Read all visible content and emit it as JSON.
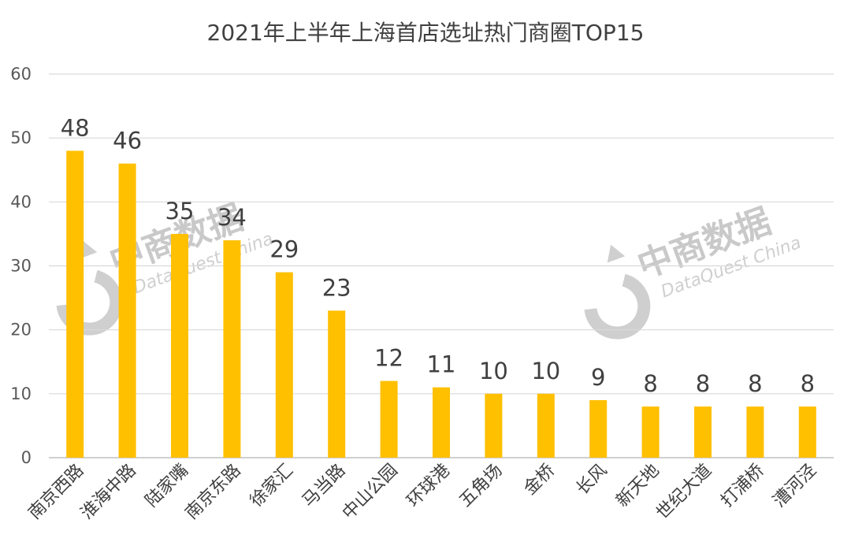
{
  "chart_data": {
    "type": "bar",
    "title": "2021年上半年上海首店选址热门商圈TOP15",
    "categories": [
      "南京西路",
      "淮海中路",
      "陆家嘴",
      "南京东路",
      "徐家汇",
      "马当路",
      "中山公园",
      "环球港",
      "五角场",
      "金桥",
      "长风",
      "新天地",
      "世纪大道",
      "打浦桥",
      "漕河泾"
    ],
    "series": [
      {
        "values": [
          48,
          46,
          35,
          34,
          29,
          23,
          12,
          11,
          10,
          10,
          9,
          8,
          8,
          8,
          8
        ]
      }
    ],
    "ylim": [
      0,
      60
    ],
    "yticks": [
      0,
      10,
      20,
      30,
      40,
      50,
      60
    ],
    "xlabel": "",
    "ylabel": "",
    "grid": true,
    "data_labels": true,
    "bar_color": "#FFC000"
  },
  "watermark": {
    "brand": "中商数据",
    "sub": "DataQuest China"
  }
}
